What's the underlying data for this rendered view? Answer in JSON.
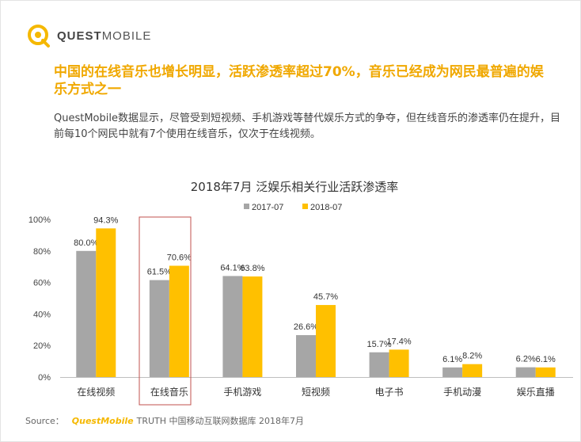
{
  "brand": {
    "logo_strong": "QUEST",
    "logo_light": "MOBILE"
  },
  "headline": "中国的在线音乐也增长明显，活跃渗透率超过70%，音乐已经成为网民最普遍的娱乐方式之一",
  "intro": "QuestMobile数据显示，尽管受到短视频、手机游戏等替代娱乐方式的争夺，但在线音乐的渗透率仍在提升，目前每10个网民中就有7个使用在线音乐，仅次于在线视频。",
  "colors": {
    "series_2017": "#a6a6a6",
    "series_2018": "#ffc000",
    "highlight_box": "#c0504d",
    "headline": "#f0a800"
  },
  "chart_data": {
    "type": "bar",
    "title": "2018年7月 泛娱乐相关行业活跃渗透率",
    "categories": [
      "在线视频",
      "在线音乐",
      "手机游戏",
      "短视频",
      "电子书",
      "手机动漫",
      "娱乐直播"
    ],
    "series": [
      {
        "name": "2017-07",
        "values": [
          80.0,
          61.5,
          64.1,
          26.6,
          15.7,
          6.1,
          6.2
        ]
      },
      {
        "name": "2018-07",
        "values": [
          94.3,
          70.6,
          63.8,
          45.7,
          17.4,
          8.2,
          6.1
        ]
      }
    ],
    "value_labels": [
      [
        "80.0%",
        "61.5%",
        "64.1%",
        "26.6%",
        "15.7%",
        "6.1%",
        "6.2%"
      ],
      [
        "94.3%",
        "70.6%",
        "63.8%",
        "45.7%",
        "17.4%",
        "8.2%",
        "6.1%"
      ]
    ],
    "y_ticks": [
      "0%",
      "20%",
      "40%",
      "60%",
      "80%",
      "100%"
    ],
    "ylim": [
      0,
      100
    ],
    "grid": false,
    "legend_position": "top-center",
    "highlighted_category": "在线音乐"
  },
  "source": {
    "label": "Source：",
    "brand": "QuestMobile",
    "text": "TRUTH 中国移动互联网数据库 2018年7月"
  }
}
